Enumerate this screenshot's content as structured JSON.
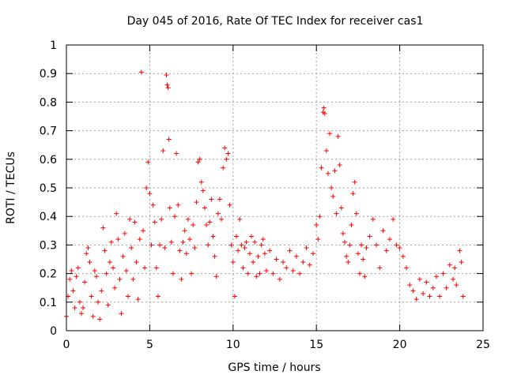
{
  "chart_data": {
    "type": "scatter",
    "title": "Day 045 of 2016, Rate Of TEC Index for receiver cas1",
    "xlabel": "GPS time / hours",
    "ylabel": "ROTI / TECUs",
    "xlim": [
      0,
      25
    ],
    "ylim": [
      0,
      1
    ],
    "xticks": [
      "0",
      "5",
      "10",
      "15",
      "20",
      "25"
    ],
    "yticks": [
      "0",
      "0.1",
      "0.2",
      "0.3",
      "0.4",
      "0.5",
      "0.6",
      "0.7",
      "0.8",
      "0.9",
      "1"
    ],
    "grid": true,
    "marker": "+",
    "marker_color": "#ff0000",
    "series": [
      {
        "points": [
          [
            0.0,
            0.05
          ],
          [
            0.1,
            0.12
          ],
          [
            0.2,
            0.18
          ],
          [
            0.3,
            0.21
          ],
          [
            0.4,
            0.14
          ],
          [
            0.5,
            0.08
          ],
          [
            0.6,
            0.19
          ],
          [
            0.7,
            0.22
          ],
          [
            0.8,
            0.1
          ],
          [
            0.9,
            0.06
          ],
          [
            1.0,
            0.08
          ],
          [
            1.1,
            0.17
          ],
          [
            1.2,
            0.27
          ],
          [
            1.3,
            0.29
          ],
          [
            1.4,
            0.24
          ],
          [
            1.5,
            0.12
          ],
          [
            1.6,
            0.05
          ],
          [
            1.7,
            0.21
          ],
          [
            1.8,
            0.19
          ],
          [
            1.9,
            0.1
          ],
          [
            2.0,
            0.04
          ],
          [
            2.1,
            0.14
          ],
          [
            2.2,
            0.36
          ],
          [
            2.3,
            0.28
          ],
          [
            2.4,
            0.2
          ],
          [
            2.5,
            0.09
          ],
          [
            2.6,
            0.24
          ],
          [
            2.7,
            0.31
          ],
          [
            2.8,
            0.22
          ],
          [
            2.9,
            0.15
          ],
          [
            3.0,
            0.41
          ],
          [
            3.1,
            0.32
          ],
          [
            3.2,
            0.18
          ],
          [
            3.3,
            0.06
          ],
          [
            3.4,
            0.26
          ],
          [
            3.5,
            0.34
          ],
          [
            3.6,
            0.21
          ],
          [
            3.7,
            0.12
          ],
          [
            3.8,
            0.39
          ],
          [
            3.9,
            0.29
          ],
          [
            4.0,
            0.18
          ],
          [
            4.1,
            0.38
          ],
          [
            4.2,
            0.24
          ],
          [
            4.3,
            0.11
          ],
          [
            4.4,
            0.32
          ],
          [
            4.5,
            0.905
          ],
          [
            4.6,
            0.35
          ],
          [
            4.7,
            0.22
          ],
          [
            4.8,
            0.5
          ],
          [
            4.9,
            0.59
          ],
          [
            5.0,
            0.48
          ],
          [
            5.1,
            0.3
          ],
          [
            5.2,
            0.44
          ],
          [
            5.3,
            0.38
          ],
          [
            5.4,
            0.22
          ],
          [
            5.5,
            0.12
          ],
          [
            5.6,
            0.3
          ],
          [
            5.7,
            0.39
          ],
          [
            5.8,
            0.63
          ],
          [
            5.9,
            0.29
          ],
          [
            6.0,
            0.895
          ],
          [
            6.05,
            0.86
          ],
          [
            6.1,
            0.85
          ],
          [
            6.15,
            0.67
          ],
          [
            6.2,
            0.43
          ],
          [
            6.3,
            0.31
          ],
          [
            6.4,
            0.2
          ],
          [
            6.5,
            0.4
          ],
          [
            6.6,
            0.62
          ],
          [
            6.7,
            0.44
          ],
          [
            6.8,
            0.28
          ],
          [
            6.9,
            0.18
          ],
          [
            7.0,
            0.31
          ],
          [
            7.1,
            0.35
          ],
          [
            7.2,
            0.27
          ],
          [
            7.3,
            0.39
          ],
          [
            7.4,
            0.32
          ],
          [
            7.5,
            0.2
          ],
          [
            7.6,
            0.37
          ],
          [
            7.7,
            0.29
          ],
          [
            7.8,
            0.45
          ],
          [
            7.9,
            0.59
          ],
          [
            8.0,
            0.6
          ],
          [
            8.1,
            0.52
          ],
          [
            8.2,
            0.49
          ],
          [
            8.3,
            0.43
          ],
          [
            8.4,
            0.37
          ],
          [
            8.5,
            0.3
          ],
          [
            8.6,
            0.38
          ],
          [
            8.7,
            0.46
          ],
          [
            8.8,
            0.33
          ],
          [
            8.9,
            0.26
          ],
          [
            9.0,
            0.19
          ],
          [
            9.1,
            0.41
          ],
          [
            9.2,
            0.46
          ],
          [
            9.3,
            0.39
          ],
          [
            9.4,
            0.57
          ],
          [
            9.5,
            0.64
          ],
          [
            9.6,
            0.6
          ],
          [
            9.7,
            0.62
          ],
          [
            9.8,
            0.44
          ],
          [
            9.9,
            0.3
          ],
          [
            10.0,
            0.24
          ],
          [
            10.1,
            0.12
          ],
          [
            10.2,
            0.33
          ],
          [
            10.3,
            0.28
          ],
          [
            10.4,
            0.39
          ],
          [
            10.5,
            0.3
          ],
          [
            10.6,
            0.22
          ],
          [
            10.7,
            0.29
          ],
          [
            10.8,
            0.31
          ],
          [
            10.9,
            0.2
          ],
          [
            11.0,
            0.27
          ],
          [
            11.1,
            0.33
          ],
          [
            11.2,
            0.24
          ],
          [
            11.3,
            0.31
          ],
          [
            11.4,
            0.19
          ],
          [
            11.5,
            0.26
          ],
          [
            11.6,
            0.2
          ],
          [
            11.7,
            0.3
          ],
          [
            11.8,
            0.32
          ],
          [
            11.9,
            0.27
          ],
          [
            12.0,
            0.21
          ],
          [
            12.2,
            0.28
          ],
          [
            12.4,
            0.2
          ],
          [
            12.6,
            0.25
          ],
          [
            12.8,
            0.18
          ],
          [
            13.0,
            0.24
          ],
          [
            13.2,
            0.22
          ],
          [
            13.4,
            0.28
          ],
          [
            13.6,
            0.21
          ],
          [
            13.8,
            0.26
          ],
          [
            14.0,
            0.2
          ],
          [
            14.2,
            0.24
          ],
          [
            14.4,
            0.29
          ],
          [
            14.6,
            0.23
          ],
          [
            14.8,
            0.27
          ],
          [
            15.0,
            0.37
          ],
          [
            15.1,
            0.32
          ],
          [
            15.2,
            0.4
          ],
          [
            15.3,
            0.57
          ],
          [
            15.4,
            0.765
          ],
          [
            15.45,
            0.78
          ],
          [
            15.5,
            0.76
          ],
          [
            15.6,
            0.63
          ],
          [
            15.7,
            0.55
          ],
          [
            15.8,
            0.69
          ],
          [
            15.9,
            0.5
          ],
          [
            16.0,
            0.47
          ],
          [
            16.1,
            0.56
          ],
          [
            16.2,
            0.41
          ],
          [
            16.3,
            0.68
          ],
          [
            16.4,
            0.58
          ],
          [
            16.5,
            0.43
          ],
          [
            16.6,
            0.34
          ],
          [
            16.7,
            0.31
          ],
          [
            16.8,
            0.26
          ],
          [
            16.9,
            0.24
          ],
          [
            17.0,
            0.3
          ],
          [
            17.1,
            0.37
          ],
          [
            17.2,
            0.48
          ],
          [
            17.3,
            0.52
          ],
          [
            17.4,
            0.41
          ],
          [
            17.5,
            0.27
          ],
          [
            17.6,
            0.2
          ],
          [
            17.7,
            0.3
          ],
          [
            17.8,
            0.25
          ],
          [
            17.9,
            0.19
          ],
          [
            18.0,
            0.29
          ],
          [
            18.2,
            0.33
          ],
          [
            18.4,
            0.39
          ],
          [
            18.6,
            0.3
          ],
          [
            18.8,
            0.22
          ],
          [
            19.0,
            0.35
          ],
          [
            19.2,
            0.28
          ],
          [
            19.4,
            0.32
          ],
          [
            19.6,
            0.39
          ],
          [
            19.8,
            0.3
          ],
          [
            20.0,
            0.29
          ],
          [
            20.2,
            0.26
          ],
          [
            20.4,
            0.22
          ],
          [
            20.6,
            0.16
          ],
          [
            20.8,
            0.14
          ],
          [
            21.0,
            0.11
          ],
          [
            21.2,
            0.18
          ],
          [
            21.4,
            0.13
          ],
          [
            21.6,
            0.17
          ],
          [
            21.8,
            0.12
          ],
          [
            22.0,
            0.15
          ],
          [
            22.2,
            0.19
          ],
          [
            22.4,
            0.12
          ],
          [
            22.6,
            0.2
          ],
          [
            22.8,
            0.15
          ],
          [
            23.0,
            0.23
          ],
          [
            23.2,
            0.18
          ],
          [
            23.3,
            0.22
          ],
          [
            23.4,
            0.16
          ],
          [
            23.6,
            0.28
          ],
          [
            23.7,
            0.24
          ],
          [
            23.8,
            0.12
          ]
        ]
      }
    ]
  }
}
